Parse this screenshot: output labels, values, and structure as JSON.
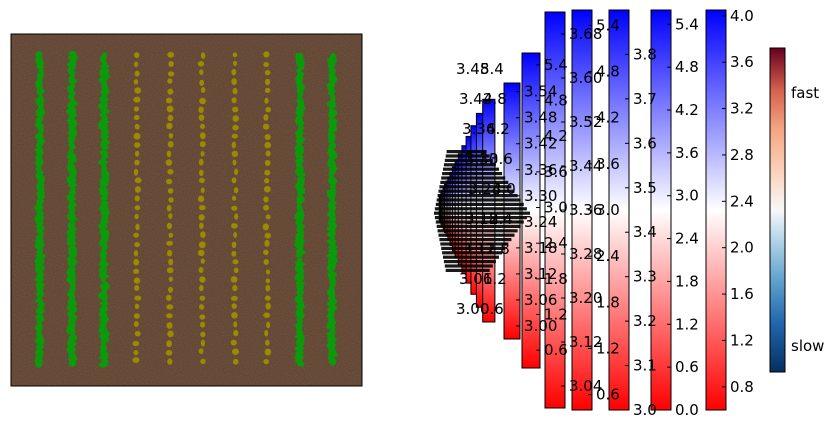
{
  "chart_data": [
    {
      "type": "image",
      "description_of_content": "field",
      "rows_count": 10,
      "row_colors": [
        "green",
        "green",
        "green",
        "olive",
        "olive",
        "olive",
        "olive",
        "olive",
        "green",
        "green"
      ],
      "colors": {
        "soil": "#5a3d2b",
        "green": "#0a9a0a",
        "olive": "#9a8a00"
      }
    },
    {
      "type": "colorbar",
      "name": "cascade",
      "count": 24,
      "colormap": "bwr",
      "large": [
        {
          "ticks": [
            "0.8",
            "1.2",
            "1.6",
            "2.0",
            "2.4",
            "2.8",
            "3.2",
            "3.6",
            "4.0"
          ],
          "min": 0.6,
          "max": 4.05
        },
        {
          "ticks": [
            "0.0",
            "0.6",
            "1.2",
            "1.8",
            "2.4",
            "3.0",
            "3.6",
            "4.2",
            "4.8",
            "5.4"
          ],
          "min": 0.0,
          "max": 5.6
        },
        {
          "ticks": [
            "3.0",
            "3.1",
            "3.2",
            "3.3",
            "3.4",
            "3.5",
            "3.6",
            "3.7",
            "3.8"
          ],
          "min": 3.0,
          "max": 3.9
        },
        {
          "ticks": [
            "0.6",
            "1.2",
            "1.8",
            "2.4",
            "3.0",
            "3.6",
            "4.2",
            "4.8",
            "5.4"
          ],
          "min": 0.4,
          "max": 5.6
        },
        {
          "ticks": [
            "3.04",
            "3.12",
            "3.20",
            "3.28",
            "3.36",
            "3.44",
            "3.52",
            "3.60",
            "3.68"
          ],
          "min": 3.0,
          "max": 3.72
        },
        {
          "ticks": [
            "0.6",
            "1.2",
            "1.8",
            "2.4",
            "3.0",
            "3.6",
            "4.2",
            "4.8",
            "5.4"
          ],
          "min": 0.3,
          "max": 5.6
        },
        {
          "ticks": [
            "3.00",
            "3.06",
            "3.12",
            "3.18",
            "3.24",
            "3.30",
            "3.36",
            "3.42",
            "3.48",
            "3.54"
          ],
          "min": 2.97,
          "max": 3.56
        }
      ],
      "small_labels": [
        "5.4",
        "4.8",
        "4.2",
        "3.6",
        "3.0",
        "2.4",
        "1.8",
        "1.2",
        "0.6",
        "3.48",
        "3.42",
        "3.36",
        "3.30",
        "3.24",
        "3.18",
        "3.12",
        "3.06",
        "3.00"
      ]
    },
    {
      "type": "colorbar",
      "name": "speed",
      "colormap": "RdBu_r",
      "labels": [
        "fast",
        "slow"
      ]
    }
  ]
}
